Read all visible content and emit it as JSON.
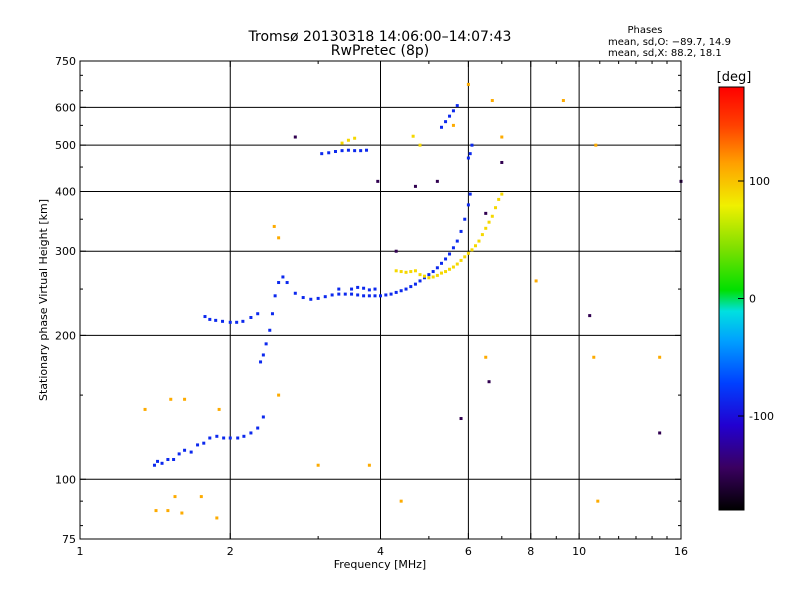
{
  "chart_data": {
    "type": "scatter",
    "title": "Tromsø 20130318 14:06:00–14:07:43",
    "subtitle": "RwPretec (8p)",
    "xlabel": "Frequency [MHz]",
    "ylabel": "Stationary phase Virtual Height [km]",
    "x_scale": "log",
    "y_scale": "log",
    "xlim": [
      1,
      16
    ],
    "ylim": [
      75,
      750
    ],
    "x_ticks": [
      1,
      2,
      4,
      6,
      8,
      10,
      16
    ],
    "x_grid": [
      2,
      4,
      6,
      8,
      10
    ],
    "y_ticks": [
      75,
      100,
      200,
      300,
      400,
      500,
      600,
      750
    ],
    "y_grid": [
      100,
      200,
      300,
      400,
      500,
      600
    ],
    "stats": {
      "heading": "Phases",
      "o_line": "mean, sd,O: −89.7, 14.9",
      "x_line": "mean, sd,X:  88.2, 18.1"
    },
    "colorbar": {
      "label": "[deg]",
      "ticks": [
        -100,
        0,
        100
      ],
      "range": [
        -180,
        180
      ]
    },
    "series": [
      {
        "name": "blue-o-trace",
        "phase": -85,
        "points": [
          [
            1.41,
            107
          ],
          [
            1.43,
            109
          ],
          [
            1.46,
            108
          ],
          [
            1.5,
            110
          ],
          [
            1.54,
            110
          ],
          [
            1.58,
            113
          ],
          [
            1.62,
            115
          ],
          [
            1.67,
            114
          ],
          [
            1.72,
            118
          ],
          [
            1.77,
            119
          ],
          [
            1.82,
            122
          ],
          [
            1.88,
            123
          ],
          [
            1.94,
            122
          ],
          [
            2.0,
            122
          ],
          [
            2.07,
            122
          ],
          [
            2.13,
            123
          ],
          [
            2.2,
            125
          ],
          [
            2.27,
            128
          ],
          [
            2.33,
            135
          ],
          [
            1.78,
            219
          ],
          [
            1.82,
            216
          ],
          [
            1.87,
            215
          ],
          [
            1.93,
            214
          ],
          [
            2.0,
            213
          ],
          [
            2.06,
            213
          ],
          [
            2.12,
            214
          ],
          [
            2.2,
            218
          ],
          [
            2.27,
            222
          ],
          [
            2.3,
            176
          ],
          [
            2.33,
            182
          ],
          [
            2.36,
            192
          ],
          [
            2.4,
            205
          ],
          [
            2.43,
            222
          ],
          [
            2.46,
            242
          ],
          [
            2.5,
            258
          ],
          [
            2.55,
            265
          ],
          [
            2.6,
            258
          ],
          [
            2.7,
            245
          ],
          [
            2.8,
            240
          ],
          [
            2.9,
            238
          ],
          [
            3.0,
            239
          ],
          [
            3.1,
            241
          ],
          [
            3.2,
            243
          ],
          [
            3.3,
            244
          ],
          [
            3.4,
            244
          ],
          [
            3.5,
            244
          ],
          [
            3.6,
            243
          ],
          [
            3.7,
            242
          ],
          [
            3.8,
            242
          ],
          [
            3.9,
            242
          ],
          [
            4.0,
            242
          ],
          [
            4.1,
            243
          ],
          [
            4.2,
            244
          ],
          [
            4.3,
            246
          ],
          [
            4.4,
            248
          ],
          [
            4.5,
            250
          ],
          [
            4.6,
            253
          ],
          [
            4.7,
            256
          ],
          [
            4.8,
            260
          ],
          [
            4.9,
            264
          ],
          [
            5.0,
            268
          ],
          [
            5.1,
            272
          ],
          [
            5.2,
            277
          ],
          [
            5.3,
            283
          ],
          [
            5.4,
            289
          ],
          [
            5.5,
            296
          ],
          [
            5.6,
            305
          ],
          [
            5.7,
            315
          ],
          [
            5.8,
            330
          ],
          [
            5.9,
            350
          ],
          [
            6.0,
            375
          ],
          [
            6.05,
            395
          ],
          [
            3.05,
            480
          ],
          [
            3.15,
            482
          ],
          [
            3.25,
            485
          ],
          [
            3.35,
            487
          ],
          [
            3.45,
            488
          ],
          [
            3.55,
            487
          ],
          [
            3.65,
            487
          ],
          [
            3.75,
            488
          ],
          [
            3.5,
            250
          ],
          [
            3.6,
            252
          ],
          [
            3.7,
            251
          ],
          [
            3.8,
            249
          ],
          [
            3.9,
            250
          ],
          [
            3.3,
            250
          ],
          [
            5.3,
            545
          ],
          [
            5.4,
            560
          ],
          [
            5.5,
            575
          ],
          [
            5.6,
            590
          ],
          [
            5.7,
            605
          ],
          [
            6.0,
            470
          ],
          [
            6.05,
            480
          ],
          [
            6.1,
            500
          ]
        ]
      },
      {
        "name": "yellow-x-trace",
        "phase": 90,
        "points": [
          [
            4.3,
            273
          ],
          [
            4.4,
            272
          ],
          [
            4.5,
            271
          ],
          [
            4.6,
            272
          ],
          [
            4.7,
            273
          ],
          [
            4.8,
            268
          ],
          [
            4.9,
            266
          ],
          [
            5.0,
            264
          ],
          [
            5.1,
            265
          ],
          [
            5.2,
            267
          ],
          [
            5.3,
            270
          ],
          [
            5.4,
            272
          ],
          [
            5.5,
            275
          ],
          [
            5.6,
            278
          ],
          [
            5.7,
            282
          ],
          [
            5.8,
            287
          ],
          [
            5.9,
            292
          ],
          [
            6.0,
            297
          ],
          [
            6.1,
            302
          ],
          [
            6.2,
            308
          ],
          [
            6.3,
            315
          ],
          [
            6.4,
            325
          ],
          [
            6.5,
            335
          ],
          [
            6.6,
            345
          ],
          [
            6.7,
            355
          ],
          [
            6.8,
            370
          ],
          [
            6.9,
            385
          ],
          [
            7.0,
            395
          ],
          [
            3.35,
            505
          ],
          [
            3.45,
            512
          ],
          [
            3.55,
            517
          ],
          [
            4.65,
            522
          ],
          [
            4.8,
            500
          ]
        ]
      },
      {
        "name": "scattered-echoes",
        "phase": 110,
        "points": [
          [
            1.35,
            140
          ],
          [
            1.52,
            147
          ],
          [
            1.62,
            147
          ],
          [
            1.55,
            92
          ],
          [
            1.42,
            86
          ],
          [
            1.5,
            86
          ],
          [
            1.6,
            85
          ],
          [
            1.75,
            92
          ],
          [
            1.88,
            83
          ],
          [
            1.9,
            140
          ],
          [
            2.5,
            150
          ],
          [
            2.45,
            338
          ],
          [
            2.5,
            320
          ],
          [
            3.0,
            107
          ],
          [
            3.8,
            107
          ],
          [
            4.4,
            90
          ],
          [
            5.6,
            550
          ],
          [
            6.0,
            670
          ],
          [
            6.5,
            180
          ],
          [
            6.7,
            620
          ],
          [
            7.0,
            520
          ],
          [
            9.3,
            620
          ],
          [
            10.8,
            500
          ],
          [
            10.7,
            180
          ],
          [
            14.5,
            180
          ],
          [
            10.9,
            90
          ],
          [
            8.2,
            260
          ]
        ]
      },
      {
        "name": "dark-echoes",
        "phase": -150,
        "points": [
          [
            3.95,
            420
          ],
          [
            4.7,
            410
          ],
          [
            5.2,
            420
          ],
          [
            6.5,
            360
          ],
          [
            6.6,
            160
          ],
          [
            7.0,
            460
          ],
          [
            5.8,
            134
          ],
          [
            2.7,
            520
          ],
          [
            4.3,
            300
          ],
          [
            10.5,
            220
          ],
          [
            16,
            420
          ],
          [
            14.5,
            125
          ]
        ]
      }
    ]
  }
}
